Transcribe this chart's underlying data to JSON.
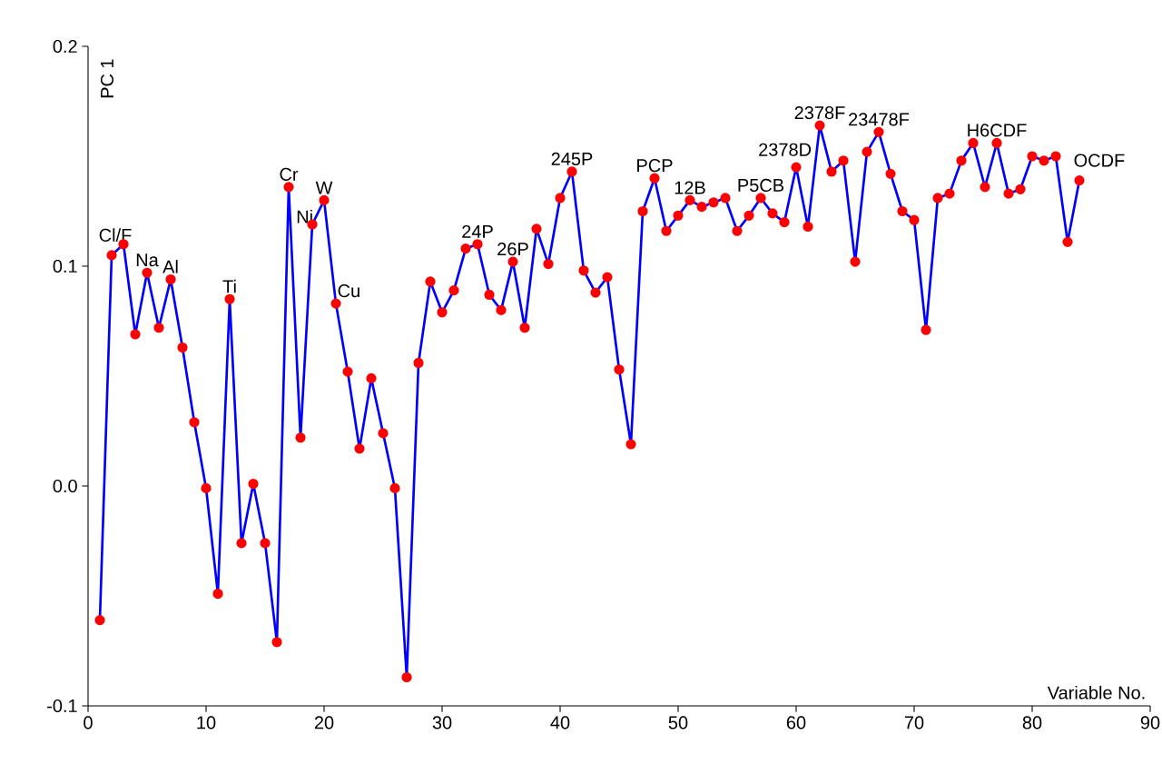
{
  "chart_data": {
    "type": "line",
    "xlabel": "Variable No.",
    "ylabel": "PC 1",
    "x": [
      1,
      2,
      3,
      4,
      5,
      6,
      7,
      8,
      9,
      10,
      11,
      12,
      13,
      14,
      15,
      16,
      17,
      18,
      19,
      20,
      21,
      22,
      23,
      24,
      25,
      26,
      27,
      28,
      29,
      30,
      31,
      32,
      33,
      34,
      35,
      36,
      37,
      38,
      39,
      40,
      41,
      42,
      43,
      44,
      45,
      46,
      47,
      48,
      49,
      50,
      51,
      52,
      53,
      54,
      55,
      56,
      57,
      58,
      59,
      60,
      61,
      62,
      63,
      64,
      65,
      66,
      67,
      68,
      69,
      70,
      71,
      72,
      73,
      74,
      75,
      76,
      77,
      78,
      79,
      80,
      81,
      82,
      83,
      84
    ],
    "series": [
      {
        "color": "#0000ff",
        "values": [
          -0.061,
          0.105,
          0.11,
          0.069,
          0.097,
          0.072,
          0.094,
          0.063,
          0.029,
          -0.001,
          -0.049,
          0.085,
          -0.026,
          0.001,
          -0.026,
          -0.071,
          0.136,
          0.022,
          0.119,
          0.13,
          0.083,
          0.052,
          0.017,
          0.049,
          0.024,
          -0.001,
          -0.087,
          0.056,
          0.093,
          0.079,
          0.089,
          0.108,
          0.11,
          0.087,
          0.08,
          0.102,
          0.072,
          0.117,
          0.101,
          0.131,
          0.143,
          0.098,
          0.088,
          0.095,
          0.053,
          0.019,
          0.125,
          0.14,
          0.116,
          0.123,
          0.13,
          0.127,
          0.129,
          0.131,
          0.116,
          0.123,
          0.131,
          0.124,
          0.12,
          0.145,
          0.118,
          0.164,
          0.143,
          0.148,
          0.102,
          0.152,
          0.161,
          0.142,
          0.125,
          0.121,
          0.071,
          0.131,
          0.133,
          0.148,
          0.156,
          0.136,
          0.156,
          0.133,
          0.135,
          0.15,
          0.148,
          0.15,
          0.111,
          0.139
        ]
      }
    ],
    "marker": "circle",
    "xlim": [
      0,
      90
    ],
    "xticks": [
      0,
      10,
      20,
      30,
      40,
      50,
      60,
      70,
      80,
      90
    ],
    "ylim": [
      -0.1,
      0.2
    ],
    "yticks": [
      {
        "value": -0.1,
        "label": "-0.1"
      },
      {
        "value": 0,
        "label": "0.0"
      },
      {
        "value": 0.1,
        "label": "0.1"
      },
      {
        "value": 0.2,
        "label": "0.2"
      }
    ],
    "grid": false,
    "annotations": [
      {
        "text": "Cl/F",
        "x": 2,
        "y": 0.105
      },
      {
        "text": "Na",
        "x": 5,
        "y": 0.097
      },
      {
        "text": "Al",
        "x": 7,
        "y": 0.094
      },
      {
        "text": "Ti",
        "x": 12,
        "y": 0.085
      },
      {
        "text": "Cr",
        "x": 17,
        "y": 0.136
      },
      {
        "text": "Ni",
        "x": 19,
        "y": 0.119
      },
      {
        "text": "W",
        "x": 20,
        "y": 0.13
      },
      {
        "text": "Cu",
        "x": 21,
        "y": 0.083
      },
      {
        "text": "24P",
        "x": 33,
        "y": 0.11
      },
      {
        "text": "26P",
        "x": 36,
        "y": 0.102
      },
      {
        "text": "245P",
        "x": 41,
        "y": 0.143
      },
      {
        "text": "PCP",
        "x": 48,
        "y": 0.14
      },
      {
        "text": "12B",
        "x": 51,
        "y": 0.13
      },
      {
        "text": "P5CB",
        "x": 57,
        "y": 0.131
      },
      {
        "text": "2378D",
        "x": 60,
        "y": 0.145
      },
      {
        "text": "2378F",
        "x": 62,
        "y": 0.164
      },
      {
        "text": "23478F",
        "x": 67,
        "y": 0.161
      },
      {
        "text": "H6CDF",
        "x": 77,
        "y": 0.156
      },
      {
        "text": "OCDF",
        "x": 84,
        "y": 0.139
      }
    ]
  }
}
